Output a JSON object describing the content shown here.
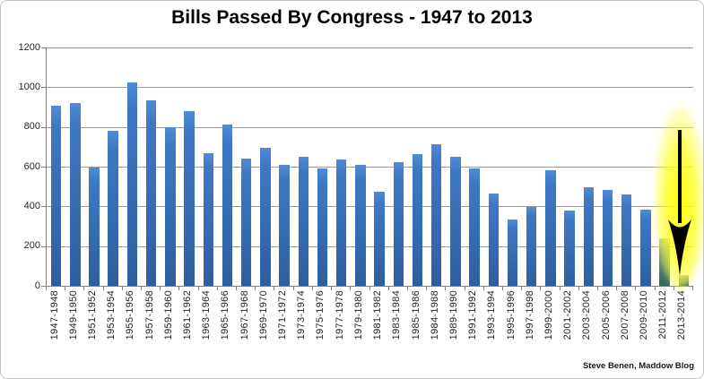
{
  "figure": {
    "title": "Bills Passed By Congress - 1947 to 2013",
    "attribution": "Steve Benen, Maddow Blog"
  },
  "chart_data": {
    "type": "bar",
    "title": "Bills Passed By Congress - 1947 to 2013",
    "categories": [
      "1947-1948",
      "1949-1950",
      "1951-1952",
      "1953-1954",
      "1955-1956",
      "1957-1958",
      "1959-1960",
      "1961-1962",
      "1963-1964",
      "1965-1966",
      "1967-1968",
      "1969-1970",
      "1971-1972",
      "1973-1974",
      "1975-1976",
      "1977-1978",
      "1979-1980",
      "1981-1982",
      "1983-1984",
      "1985-1986",
      "1984-1988",
      "1989-1990",
      "1991-1992",
      "1993-1994",
      "1995-1996",
      "1997-1998",
      "1999-2000",
      "2001-2002",
      "2003-2004",
      "2005-2006",
      "2007-2008",
      "2009-2010",
      "2011-2012",
      "2013-2014"
    ],
    "values": [
      905,
      920,
      595,
      781,
      1026,
      936,
      800,
      881,
      666,
      810,
      641,
      697,
      607,
      650,
      589,
      634,
      611,
      473,
      623,
      664,
      713,
      650,
      589,
      465,
      333,
      395,
      580,
      380,
      498,
      483,
      460,
      383,
      240,
      56
    ],
    "xlabel": "",
    "ylabel": "",
    "ylim": [
      0,
      1200
    ],
    "yticks": [
      0,
      200,
      400,
      600,
      800,
      1000,
      1200
    ],
    "grid": "horizontal",
    "legend": "none",
    "bar_color": "#3a76c0",
    "gridline_color": "#9c9c9c",
    "highlight": {
      "categories": [
        "2011-2012",
        "2013-2014"
      ],
      "glow_color": "#ffff00",
      "annotation": "black downward arrow over yellow glow pointing at 2013-2014 bar"
    }
  }
}
